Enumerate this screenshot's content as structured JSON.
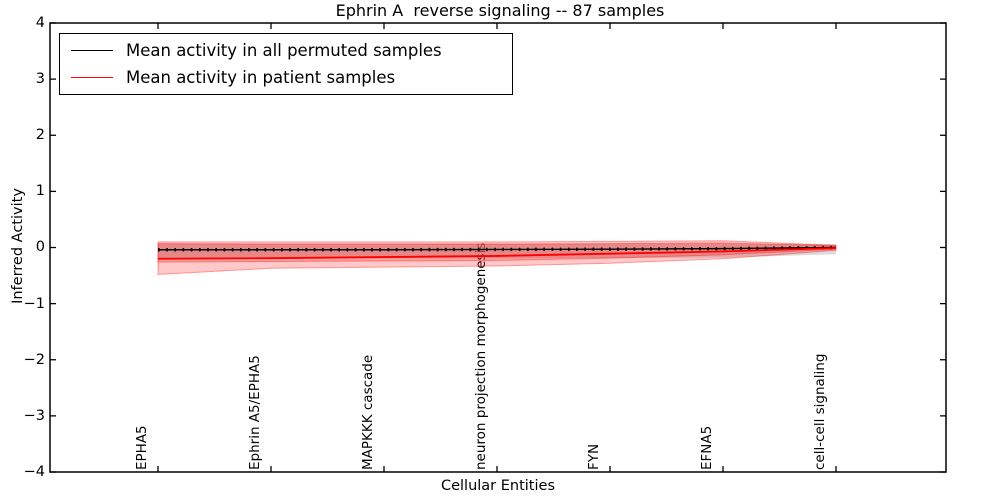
{
  "chart_data": {
    "type": "line",
    "title": "Ephrin A  reverse signaling -- 87 samples",
    "xlabel": "Cellular Entities",
    "ylabel": "Inferred Activity",
    "ylim": [
      -4,
      4
    ],
    "grid": false,
    "ytick_labels": [
      "4",
      "3",
      "2",
      "1",
      "0",
      "−1",
      "−2",
      "−3",
      "−4"
    ],
    "ytick_values": [
      4,
      3,
      2,
      1,
      0,
      -1,
      -2,
      -3,
      -4
    ],
    "categories": [
      "EPHA5",
      "Ephrin A5/EPHA5",
      "MAPKKK cascade",
      "neuron projection morphogenesis",
      "FYN",
      "EFNA5",
      "cell-cell signaling"
    ],
    "legend": {
      "position": "upper left",
      "entries": [
        {
          "label": "Mean activity in all permuted samples",
          "color": "#000000"
        },
        {
          "label": "Mean activity in patient samples",
          "color": "#ff0000"
        }
      ]
    },
    "series": [
      {
        "name": "Mean activity in all permuted samples",
        "color": "#000000",
        "style": "line+dots",
        "values": [
          -0.04,
          -0.04,
          -0.04,
          -0.035,
          -0.03,
          -0.02,
          0.0
        ]
      },
      {
        "name": "Mean activity in patient samples",
        "color": "#ff0000",
        "style": "line",
        "values": [
          -0.2,
          -0.19,
          -0.17,
          -0.15,
          -0.11,
          -0.07,
          -0.01
        ]
      }
    ],
    "bands": [
      {
        "name": "permuted-samples-std-band",
        "color": "#bdbdbd",
        "opacity": 0.55,
        "edge": false,
        "upper": [
          0.07,
          0.07,
          0.07,
          0.07,
          0.07,
          0.07,
          0.06
        ],
        "lower": [
          -0.19,
          -0.19,
          -0.19,
          -0.19,
          -0.19,
          -0.18,
          -0.12
        ]
      },
      {
        "name": "patient-samples-std-outer-band",
        "color": "#ff0000",
        "opacity": 0.21,
        "edge": true,
        "upper": [
          0.1,
          0.1,
          0.1,
          0.1,
          0.11,
          0.12,
          0.04
        ],
        "lower": [
          -0.48,
          -0.37,
          -0.35,
          -0.33,
          -0.28,
          -0.2,
          -0.05
        ]
      },
      {
        "name": "patient-samples-std-inner-band",
        "color": "#ff0000",
        "opacity": 0.21,
        "edge": true,
        "upper": [
          0.07,
          0.06,
          0.06,
          0.06,
          0.07,
          0.08,
          0.03
        ],
        "lower": [
          -0.26,
          -0.25,
          -0.24,
          -0.23,
          -0.19,
          -0.13,
          -0.03
        ]
      }
    ]
  }
}
